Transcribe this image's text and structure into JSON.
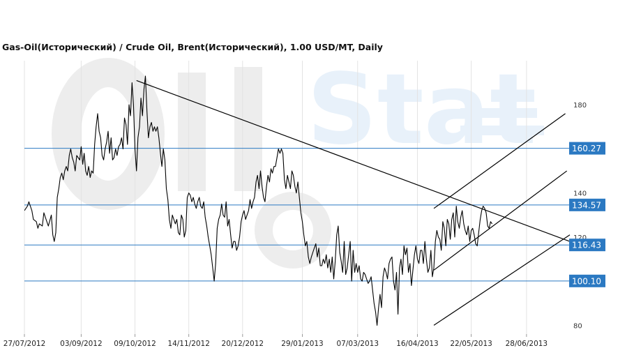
{
  "chart_data": {
    "type": "line",
    "title": "Gas-Oil(Исторический) / Crude Oil, Brent(Исторический), 1.00 USD/MT, Daily",
    "ylim": [
      76,
      200
    ],
    "y_ticks": [
      80,
      120,
      140,
      180
    ],
    "x_tick_labels": [
      "27/07/2012",
      "03/09/2012",
      "09/10/2012",
      "14/11/2012",
      "20/12/2012",
      "29/01/2013",
      "07/03/2013",
      "16/04/2013",
      "22/05/2013",
      "28/06/2013"
    ],
    "x_range_days": [
      0,
      365
    ],
    "x_tick_days": [
      0,
      38,
      74,
      110,
      146,
      186,
      223,
      263,
      299,
      336
    ],
    "levels": [
      {
        "value": 160.27,
        "label": "160.27"
      },
      {
        "value": 134.57,
        "label": "134.57"
      },
      {
        "value": 116.43,
        "label": "116.43"
      },
      {
        "value": 100.1,
        "label": "100.10"
      }
    ],
    "trendlines": [
      {
        "name": "descending-resistance",
        "from": [
          75,
          191
        ],
        "to": [
          365,
          118
        ]
      },
      {
        "name": "channel-upper",
        "from": [
          274,
          105
        ],
        "to": [
          363,
          150
        ]
      },
      {
        "name": "channel-lower",
        "from": [
          274,
          80
        ],
        "to": [
          365,
          121
        ]
      },
      {
        "name": "channel-parallel",
        "from": [
          274,
          133
        ],
        "to": [
          362,
          176
        ]
      }
    ],
    "grid": true,
    "colors": {
      "line": "#000000",
      "level": "#2b79c2",
      "label_bg": "#2b79c2",
      "grid": "#e3e3e3",
      "watermark": "#eeeeee",
      "watermark_blue": "#e6f0f9"
    },
    "series": [
      {
        "values": [
          [
            0,
            132
          ],
          [
            2,
            134
          ],
          [
            3,
            136
          ],
          [
            5,
            132
          ],
          [
            6,
            128
          ],
          [
            8,
            127
          ],
          [
            9,
            124
          ],
          [
            10,
            126
          ],
          [
            12,
            125
          ],
          [
            13,
            131
          ],
          [
            14,
            129
          ],
          [
            16,
            125
          ],
          [
            18,
            130
          ],
          [
            19,
            121
          ],
          [
            20,
            118
          ],
          [
            21,
            122
          ],
          [
            22,
            138
          ],
          [
            23,
            142
          ],
          [
            24,
            147
          ],
          [
            25,
            149
          ],
          [
            26,
            146
          ],
          [
            27,
            150
          ],
          [
            28,
            152
          ],
          [
            29,
            150
          ],
          [
            30,
            157
          ],
          [
            31,
            160
          ],
          [
            32,
            156
          ],
          [
            33,
            154
          ],
          [
            34,
            150
          ],
          [
            35,
            157
          ],
          [
            36,
            156
          ],
          [
            37,
            155
          ],
          [
            38,
            161
          ],
          [
            39,
            153
          ],
          [
            40,
            158
          ],
          [
            41,
            150
          ],
          [
            42,
            148
          ],
          [
            43,
            152
          ],
          [
            44,
            147
          ],
          [
            45,
            150
          ],
          [
            46,
            149
          ],
          [
            47,
            162
          ],
          [
            48,
            170
          ],
          [
            49,
            176
          ],
          [
            50,
            168
          ],
          [
            51,
            165
          ],
          [
            52,
            157
          ],
          [
            53,
            155
          ],
          [
            54,
            160
          ],
          [
            55,
            163
          ],
          [
            56,
            168
          ],
          [
            57,
            158
          ],
          [
            58,
            165
          ],
          [
            59,
            155
          ],
          [
            60,
            156
          ],
          [
            61,
            160
          ],
          [
            62,
            157
          ],
          [
            63,
            161
          ],
          [
            64,
            162
          ],
          [
            65,
            165
          ],
          [
            66,
            160
          ],
          [
            67,
            174
          ],
          [
            68,
            171
          ],
          [
            69,
            162
          ],
          [
            70,
            180
          ],
          [
            71,
            175
          ],
          [
            72,
            190
          ],
          [
            73,
            180
          ],
          [
            74,
            160
          ],
          [
            75,
            150
          ],
          [
            76,
            165
          ],
          [
            77,
            170
          ],
          [
            78,
            183
          ],
          [
            79,
            175
          ],
          [
            80,
            187
          ],
          [
            81,
            193
          ],
          [
            82,
            177
          ],
          [
            83,
            165
          ],
          [
            84,
            170
          ],
          [
            85,
            172
          ],
          [
            86,
            168
          ],
          [
            87,
            170
          ],
          [
            88,
            168
          ],
          [
            89,
            170
          ],
          [
            90,
            165
          ],
          [
            91,
            158
          ],
          [
            92,
            152
          ],
          [
            93,
            160
          ],
          [
            94,
            155
          ],
          [
            95,
            142
          ],
          [
            96,
            137
          ],
          [
            97,
            128
          ],
          [
            98,
            124
          ],
          [
            99,
            130
          ],
          [
            100,
            128
          ],
          [
            101,
            126
          ],
          [
            102,
            128
          ],
          [
            103,
            122
          ],
          [
            104,
            121
          ],
          [
            105,
            130
          ],
          [
            106,
            128
          ],
          [
            107,
            120
          ],
          [
            108,
            123
          ],
          [
            109,
            138
          ],
          [
            110,
            140
          ],
          [
            111,
            139
          ],
          [
            112,
            136
          ],
          [
            113,
            138
          ],
          [
            114,
            135
          ],
          [
            115,
            133
          ],
          [
            116,
            136
          ],
          [
            117,
            138
          ],
          [
            118,
            134
          ],
          [
            119,
            133
          ],
          [
            120,
            136
          ],
          [
            121,
            129
          ],
          [
            122,
            125
          ],
          [
            123,
            120
          ],
          [
            124,
            116
          ],
          [
            125,
            112
          ],
          [
            126,
            106
          ],
          [
            127,
            100
          ],
          [
            128,
            108
          ],
          [
            129,
            124
          ],
          [
            130,
            128
          ],
          [
            131,
            130
          ],
          [
            132,
            135
          ],
          [
            133,
            130
          ],
          [
            134,
            129
          ],
          [
            135,
            136
          ],
          [
            136,
            125
          ],
          [
            137,
            128
          ],
          [
            138,
            121
          ],
          [
            139,
            115
          ],
          [
            140,
            118
          ],
          [
            141,
            118
          ],
          [
            142,
            114
          ],
          [
            143,
            116
          ],
          [
            144,
            120
          ],
          [
            145,
            127
          ],
          [
            146,
            130
          ],
          [
            147,
            132
          ],
          [
            148,
            128
          ],
          [
            149,
            130
          ],
          [
            150,
            132
          ],
          [
            151,
            137
          ],
          [
            152,
            133
          ],
          [
            153,
            136
          ],
          [
            154,
            138
          ],
          [
            155,
            145
          ],
          [
            156,
            148
          ],
          [
            157,
            142
          ],
          [
            158,
            150
          ],
          [
            159,
            143
          ],
          [
            160,
            138
          ],
          [
            161,
            136
          ],
          [
            162,
            143
          ],
          [
            163,
            148
          ],
          [
            164,
            145
          ],
          [
            165,
            151
          ],
          [
            166,
            149
          ],
          [
            167,
            152
          ],
          [
            168,
            152
          ],
          [
            169,
            156
          ],
          [
            170,
            160
          ],
          [
            171,
            158
          ],
          [
            172,
            160
          ],
          [
            173,
            158
          ],
          [
            174,
            146
          ],
          [
            175,
            142
          ],
          [
            176,
            148
          ],
          [
            177,
            145
          ],
          [
            178,
            142
          ],
          [
            179,
            150
          ],
          [
            180,
            148
          ],
          [
            181,
            143
          ],
          [
            182,
            140
          ],
          [
            183,
            145
          ],
          [
            184,
            138
          ],
          [
            185,
            131
          ],
          [
            186,
            127
          ],
          [
            187,
            121
          ],
          [
            188,
            116
          ],
          [
            189,
            118
          ],
          [
            190,
            111
          ],
          [
            191,
            108
          ],
          [
            192,
            111
          ],
          [
            193,
            113
          ],
          [
            194,
            115
          ],
          [
            195,
            117
          ],
          [
            196,
            111
          ],
          [
            197,
            115
          ],
          [
            198,
            107
          ],
          [
            199,
            107
          ],
          [
            200,
            110
          ],
          [
            201,
            108
          ],
          [
            202,
            112
          ],
          [
            203,
            106
          ],
          [
            204,
            110
          ],
          [
            205,
            104
          ],
          [
            206,
            111
          ],
          [
            207,
            101
          ],
          [
            208,
            109
          ],
          [
            209,
            121
          ],
          [
            210,
            125
          ],
          [
            211,
            113
          ],
          [
            212,
            109
          ],
          [
            213,
            104
          ],
          [
            214,
            118
          ],
          [
            215,
            103
          ],
          [
            216,
            106
          ],
          [
            217,
            112
          ],
          [
            218,
            118
          ],
          [
            219,
            100
          ],
          [
            220,
            114
          ],
          [
            221,
            104
          ],
          [
            222,
            108
          ],
          [
            223,
            104
          ],
          [
            224,
            107
          ],
          [
            225,
            101
          ],
          [
            226,
            100
          ],
          [
            227,
            104
          ],
          [
            228,
            103
          ],
          [
            229,
            101
          ],
          [
            230,
            99
          ],
          [
            231,
            100
          ],
          [
            232,
            102
          ],
          [
            233,
            96
          ],
          [
            234,
            90
          ],
          [
            235,
            86
          ],
          [
            236,
            80
          ],
          [
            237,
            88
          ],
          [
            238,
            94
          ],
          [
            239,
            88
          ],
          [
            240,
            102
          ],
          [
            241,
            106
          ],
          [
            242,
            104
          ],
          [
            243,
            101
          ],
          [
            244,
            108
          ],
          [
            245,
            110
          ],
          [
            246,
            111
          ],
          [
            247,
            100
          ],
          [
            248,
            96
          ],
          [
            249,
            104
          ],
          [
            250,
            85
          ],
          [
            251,
            106
          ],
          [
            252,
            110
          ],
          [
            253,
            103
          ],
          [
            254,
            116
          ],
          [
            255,
            112
          ],
          [
            256,
            115
          ],
          [
            257,
            104
          ],
          [
            258,
            108
          ],
          [
            259,
            98
          ],
          [
            260,
            105
          ],
          [
            261,
            112
          ],
          [
            262,
            116
          ],
          [
            263,
            110
          ],
          [
            264,
            108
          ],
          [
            265,
            114
          ],
          [
            266,
            114
          ],
          [
            267,
            108
          ],
          [
            268,
            118
          ],
          [
            269,
            110
          ],
          [
            270,
            104
          ],
          [
            271,
            106
          ],
          [
            272,
            114
          ],
          [
            273,
            102
          ],
          [
            274,
            106
          ],
          [
            275,
            118
          ],
          [
            276,
            123
          ],
          [
            277,
            120
          ],
          [
            278,
            119
          ],
          [
            279,
            114
          ],
          [
            280,
            127
          ],
          [
            281,
            124
          ],
          [
            282,
            116
          ],
          [
            283,
            128
          ],
          [
            284,
            126
          ],
          [
            285,
            119
          ],
          [
            286,
            128
          ],
          [
            287,
            131
          ],
          [
            288,
            120
          ],
          [
            289,
            134
          ],
          [
            290,
            127
          ],
          [
            291,
            124
          ],
          [
            292,
            129
          ],
          [
            293,
            132
          ],
          [
            294,
            126
          ],
          [
            295,
            123
          ],
          [
            296,
            121
          ],
          [
            297,
            125
          ],
          [
            298,
            118
          ],
          [
            299,
            123
          ],
          [
            300,
            124
          ],
          [
            301,
            121
          ],
          [
            302,
            117
          ],
          [
            303,
            116
          ],
          [
            304,
            122
          ],
          [
            305,
            128
          ],
          [
            306,
            132
          ],
          [
            307,
            134
          ],
          [
            308,
            133
          ],
          [
            309,
            131
          ],
          [
            310,
            125
          ],
          [
            311,
            124
          ],
          [
            312,
            127
          ],
          [
            313,
            126
          ]
        ]
      }
    ]
  }
}
